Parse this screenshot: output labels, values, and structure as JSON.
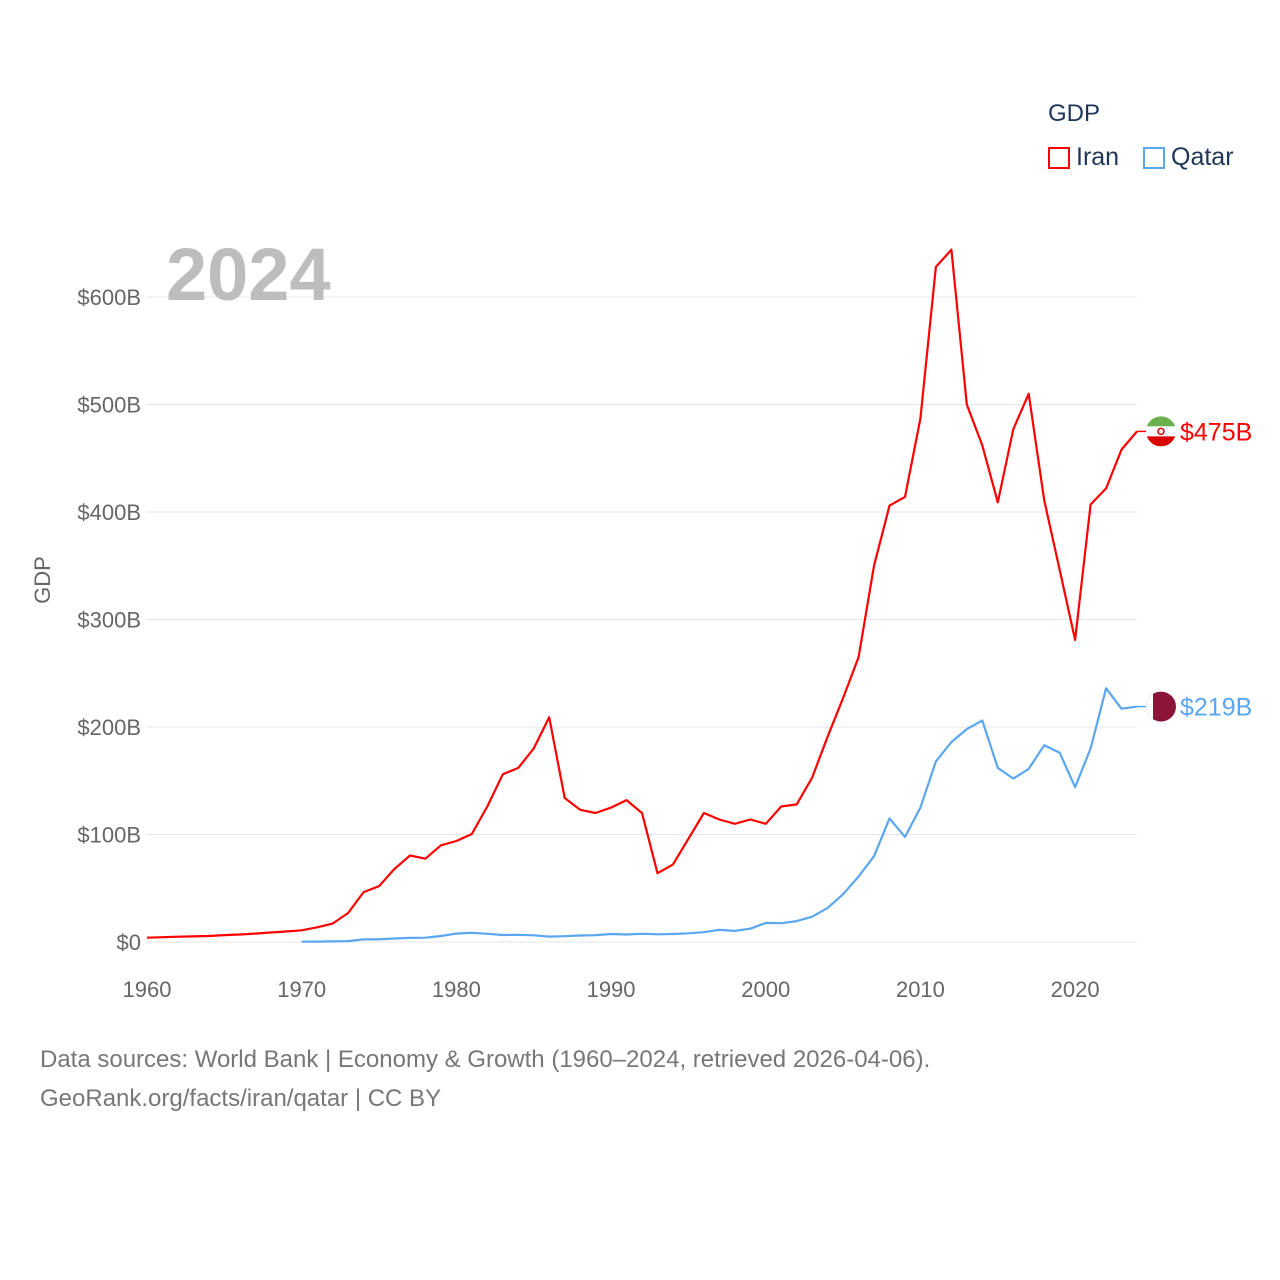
{
  "chart_data": {
    "type": "line",
    "title": "GDP",
    "year_watermark": "2024",
    "xlabel": "",
    "ylabel": "GDP",
    "xlim": [
      1960,
      2024
    ],
    "ylim": [
      0,
      650
    ],
    "x_ticks": [
      1960,
      1970,
      1980,
      1990,
      2000,
      2010,
      2020
    ],
    "x_tick_labels": [
      "1960",
      "1970",
      "1980",
      "1990",
      "2000",
      "2010",
      "2020"
    ],
    "y_ticks": [
      0,
      100,
      200,
      300,
      400,
      500,
      600
    ],
    "y_tick_labels": [
      "$0",
      "$100B",
      "$200B",
      "$300B",
      "$400B",
      "$500B",
      "$600B"
    ],
    "grid": true,
    "legend_placement": "top-right",
    "series": [
      {
        "name": "Iran",
        "color": "#ff0000",
        "start_year": 1960,
        "end_label": "$475B",
        "values": [
          4,
          4.5,
          4.9,
          5.2,
          5.6,
          6.4,
          7,
          7.8,
          8.8,
          9.8,
          10.9,
          13.7,
          17.1,
          27,
          46.4,
          51.9,
          68,
          80.5,
          77.5,
          90,
          94,
          100.5,
          126,
          156,
          162,
          180,
          209,
          134,
          123,
          120,
          125,
          132,
          120,
          64,
          72,
          96,
          120,
          114,
          110,
          114,
          110,
          126,
          128,
          153,
          191,
          227,
          265,
          350,
          406,
          414,
          487,
          628,
          644,
          500,
          462,
          409,
          477,
          510,
          411,
          346,
          281,
          407,
          422,
          458,
          475
        ]
      },
      {
        "name": "Qatar",
        "color": "#5aa6ef",
        "start_year": 1970,
        "end_label": "$219B",
        "values": [
          0.3,
          0.4,
          0.6,
          0.8,
          2.4,
          2.5,
          3.3,
          3.8,
          4,
          5.6,
          7.8,
          8.6,
          7.6,
          6.5,
          6.7,
          6.2,
          5,
          5.4,
          6,
          6.3,
          7.4,
          7,
          7.6,
          7.2,
          7.4,
          8.1,
          9.1,
          11.3,
          10.3,
          12.4,
          17.8,
          17.5,
          19.4,
          23.5,
          31.7,
          44.5,
          60.9,
          79.7,
          115,
          97.8,
          125,
          168,
          186,
          198,
          206,
          162,
          152,
          161,
          183,
          176,
          144,
          180,
          236,
          217,
          219
        ]
      }
    ]
  },
  "footer": {
    "line1": "Data sources: World Bank | Economy & Growth (1960–2024, retrieved 2026-04-06).",
    "line2": "GeoRank.org/facts/iran/qatar | CC BY"
  }
}
